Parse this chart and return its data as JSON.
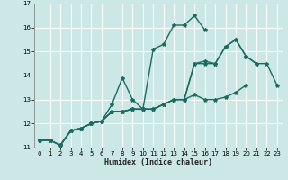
{
  "xlabel": "Humidex (Indice chaleur)",
  "bg_color": "#cce8e6",
  "grid_color": "#ffffff",
  "line_color": "#1a6b60",
  "line_width": 1.0,
  "marker": "*",
  "marker_size": 3,
  "xlim": [
    -0.5,
    23.5
  ],
  "ylim": [
    11,
    17
  ],
  "xticks": [
    0,
    1,
    2,
    3,
    4,
    5,
    6,
    7,
    8,
    9,
    10,
    11,
    12,
    13,
    14,
    15,
    16,
    17,
    18,
    19,
    20,
    21,
    22,
    23
  ],
  "yticks": [
    11,
    12,
    13,
    14,
    15,
    16,
    17
  ],
  "series": [
    {
      "x": [
        0,
        1,
        2,
        3,
        4,
        5,
        6,
        7,
        8,
        9,
        10,
        11,
        12,
        13,
        14,
        15,
        16
      ],
      "y": [
        11.3,
        11.3,
        11.1,
        11.7,
        11.8,
        12.0,
        12.1,
        12.8,
        13.9,
        13.0,
        12.6,
        15.1,
        15.3,
        16.1,
        16.1,
        16.5,
        15.9
      ]
    },
    {
      "x": [
        0,
        1,
        2,
        3,
        4,
        5,
        6,
        7,
        8,
        9,
        10,
        11,
        12,
        13,
        14,
        15,
        16,
        17,
        18,
        19,
        20
      ],
      "y": [
        11.3,
        11.3,
        11.1,
        11.7,
        11.8,
        12.0,
        12.1,
        12.5,
        12.5,
        12.6,
        12.6,
        12.6,
        12.8,
        13.0,
        13.0,
        13.2,
        13.0,
        13.0,
        13.1,
        13.3,
        13.6
      ]
    },
    {
      "x": [
        0,
        1,
        2,
        3,
        4,
        5,
        6,
        7,
        8,
        9,
        10,
        11,
        12,
        13,
        14,
        15,
        16,
        17,
        18,
        19,
        20,
        21
      ],
      "y": [
        11.3,
        11.3,
        11.1,
        11.7,
        11.8,
        12.0,
        12.1,
        12.5,
        12.5,
        12.6,
        12.6,
        12.6,
        12.8,
        13.0,
        13.0,
        14.5,
        14.6,
        14.5,
        15.2,
        15.5,
        14.8,
        14.5
      ]
    },
    {
      "x": [
        2,
        3,
        4,
        5,
        6,
        7,
        8,
        9,
        10,
        11,
        12,
        13,
        14,
        15,
        16,
        17,
        18,
        19,
        20,
        21,
        22,
        23
      ],
      "y": [
        11.1,
        11.7,
        11.8,
        12.0,
        12.1,
        12.5,
        12.5,
        12.6,
        12.6,
        12.6,
        12.8,
        13.0,
        13.0,
        14.5,
        14.5,
        14.5,
        15.2,
        15.5,
        14.8,
        14.5,
        14.5,
        13.6
      ]
    }
  ]
}
